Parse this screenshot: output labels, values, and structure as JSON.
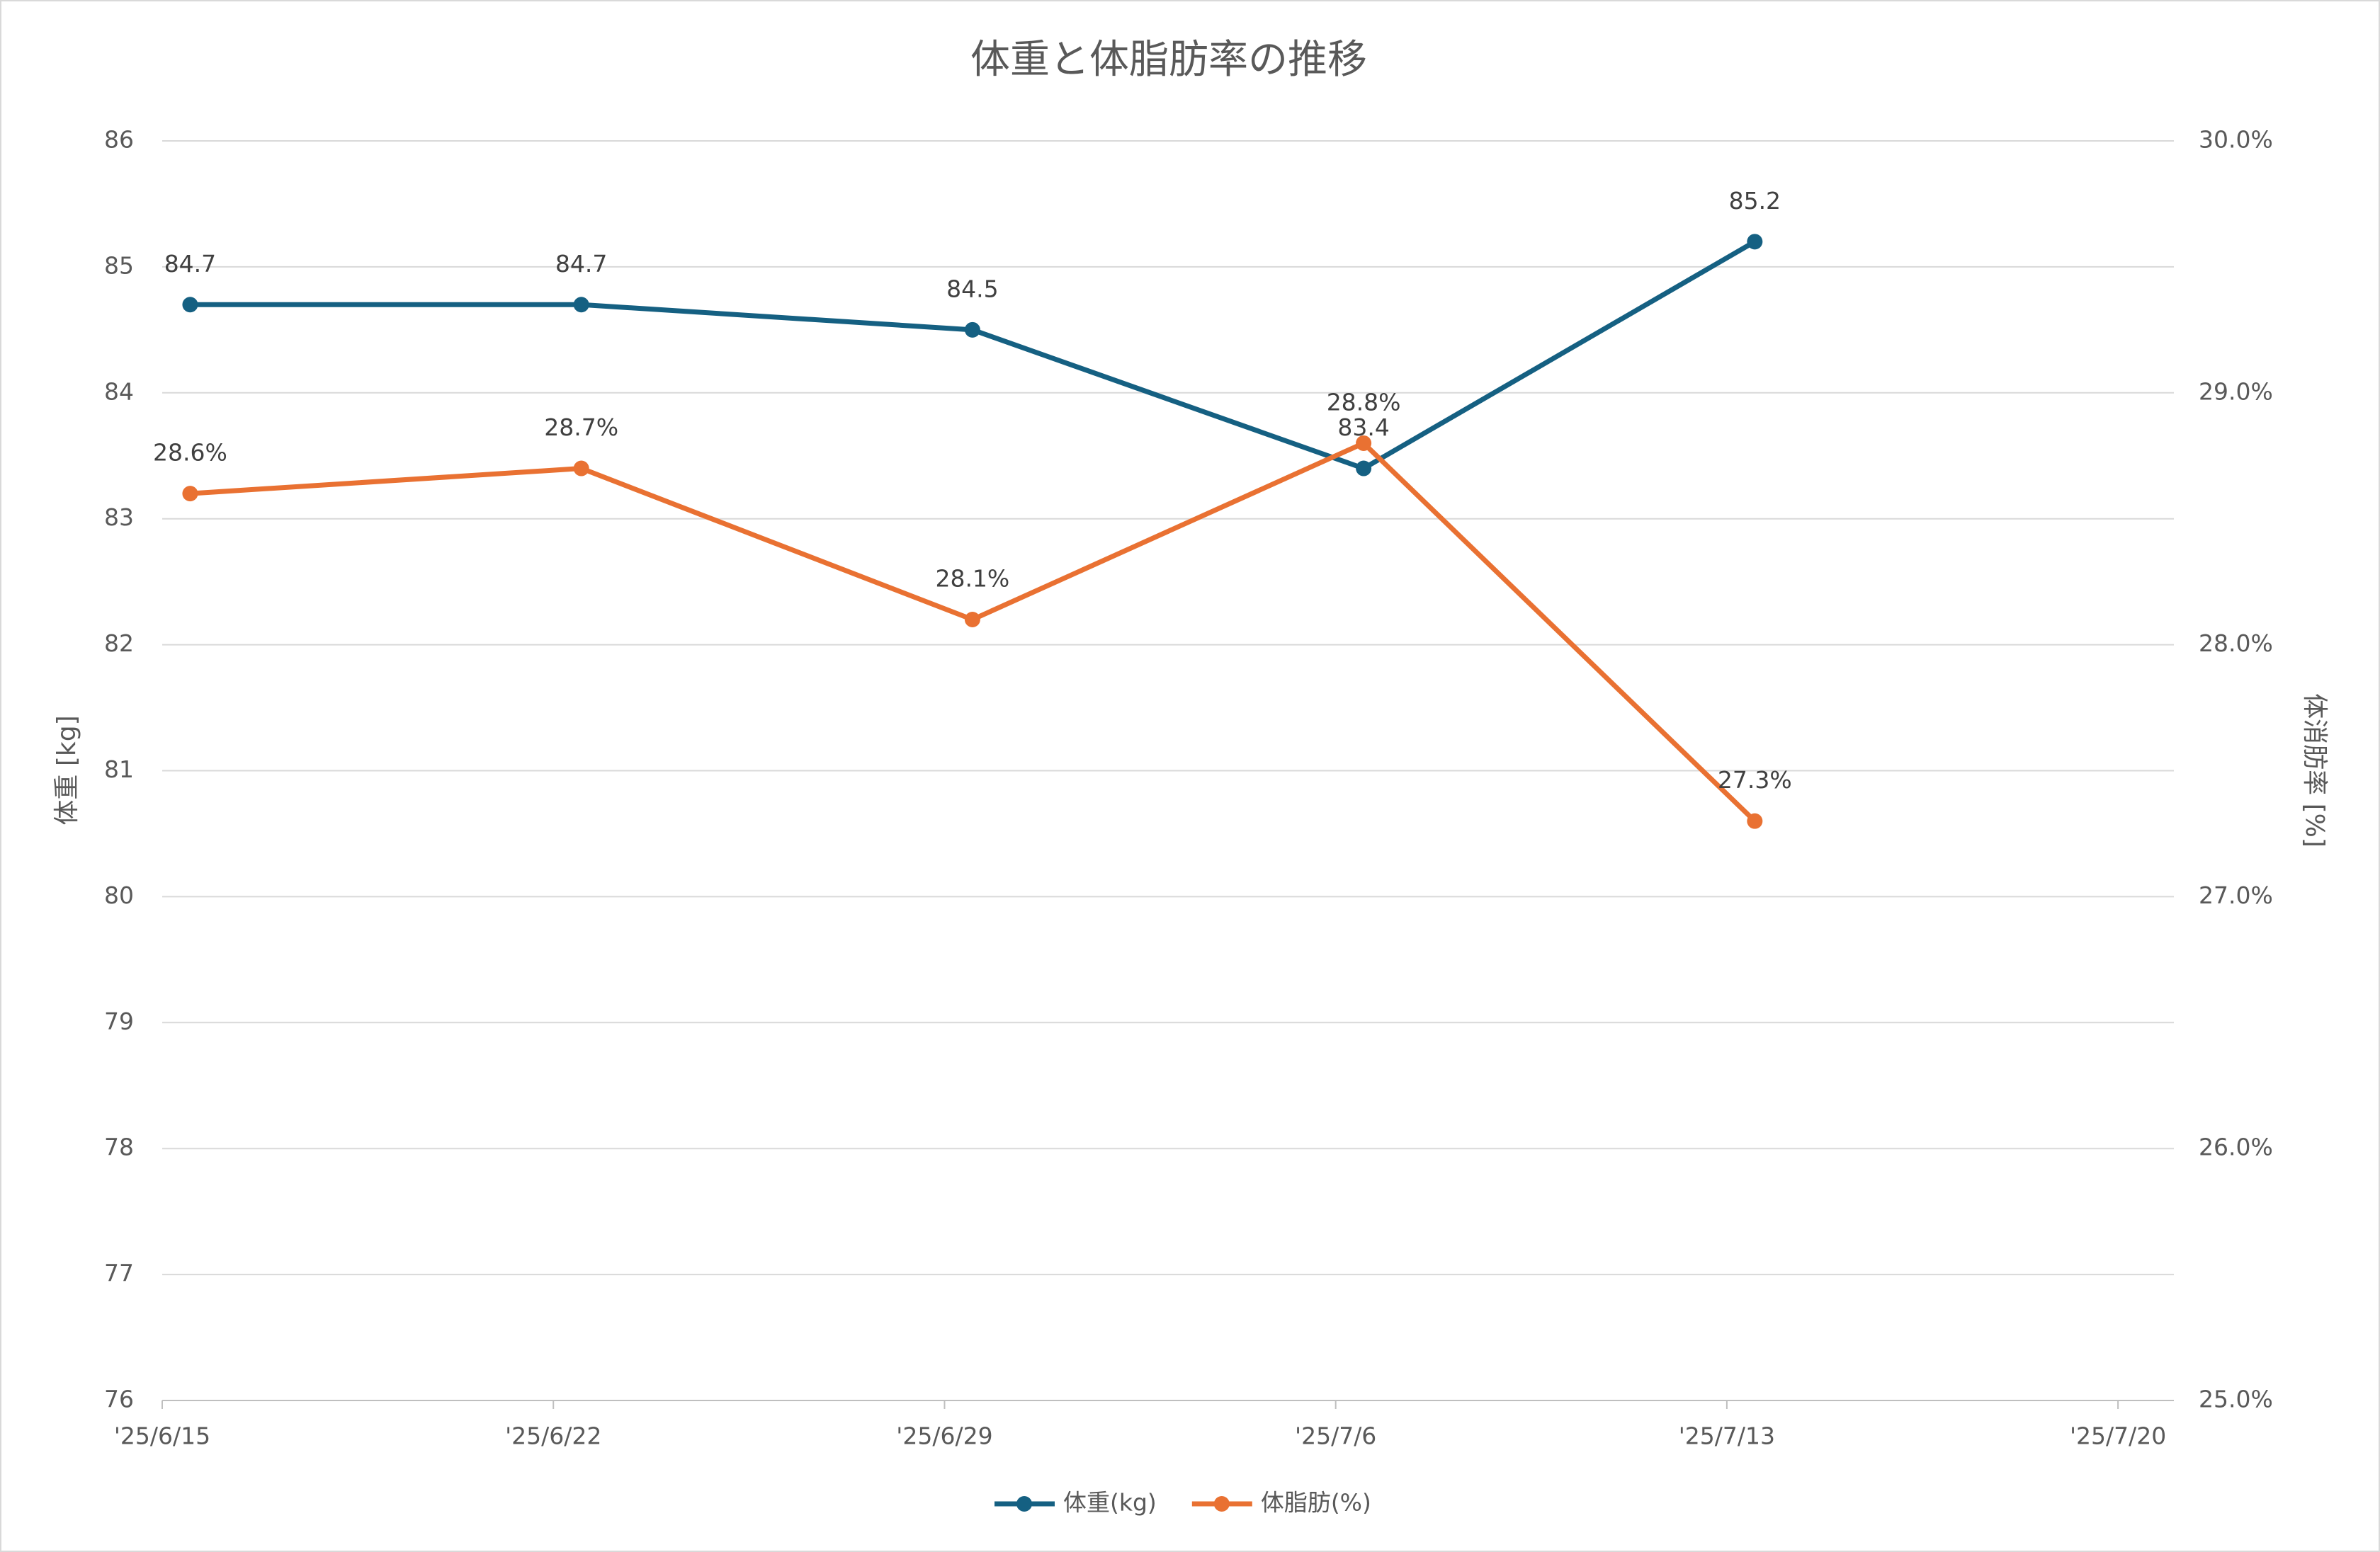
{
  "chart_data": {
    "type": "line",
    "title": "体重と体脂肪率の推移",
    "x": [
      "2025-06-15",
      "2025-06-22",
      "2025-06-29",
      "2025-07-06",
      "2025-07-13"
    ],
    "xlim": [
      "2025-06-15",
      "2025-07-21"
    ],
    "xticks": [
      {
        "value": "2025-06-15",
        "label": "'25/6/15"
      },
      {
        "value": "2025-06-22",
        "label": "'25/6/22"
      },
      {
        "value": "2025-06-29",
        "label": "'25/6/29"
      },
      {
        "value": "2025-07-06",
        "label": "'25/7/6"
      },
      {
        "value": "2025-07-13",
        "label": "'25/7/13"
      },
      {
        "value": "2025-07-20",
        "label": "'25/7/20"
      }
    ],
    "ylabel": "体重 [kg]",
    "y2label": "体消肪率 [%]",
    "ylim": [
      76,
      86
    ],
    "yticks": [
      76,
      77,
      78,
      79,
      80,
      81,
      82,
      83,
      84,
      85,
      86
    ],
    "y2lim": [
      25,
      30
    ],
    "y2ticks": [
      {
        "value": 25,
        "label": "25.0%"
      },
      {
        "value": 26,
        "label": "26.0%"
      },
      {
        "value": 27,
        "label": "27.0%"
      },
      {
        "value": 28,
        "label": "28.0%"
      },
      {
        "value": 29,
        "label": "29.0%"
      },
      {
        "value": 30,
        "label": "30.0%"
      }
    ],
    "grid": true,
    "legend": "bottom",
    "series": [
      {
        "name": "体重(kg)",
        "color": "#156082",
        "values": [
          84.7,
          84.7,
          84.5,
          83.4,
          85.2
        ]
      },
      {
        "name": "体脂肪(%)",
        "color": "#e97132",
        "axis": "y2",
        "values": [
          28.6,
          28.7,
          28.1,
          28.8,
          27.3
        ],
        "value_labels": [
          "28.6%",
          "28.7%",
          "28.1%",
          "28.8%",
          "27.3%"
        ]
      }
    ]
  }
}
